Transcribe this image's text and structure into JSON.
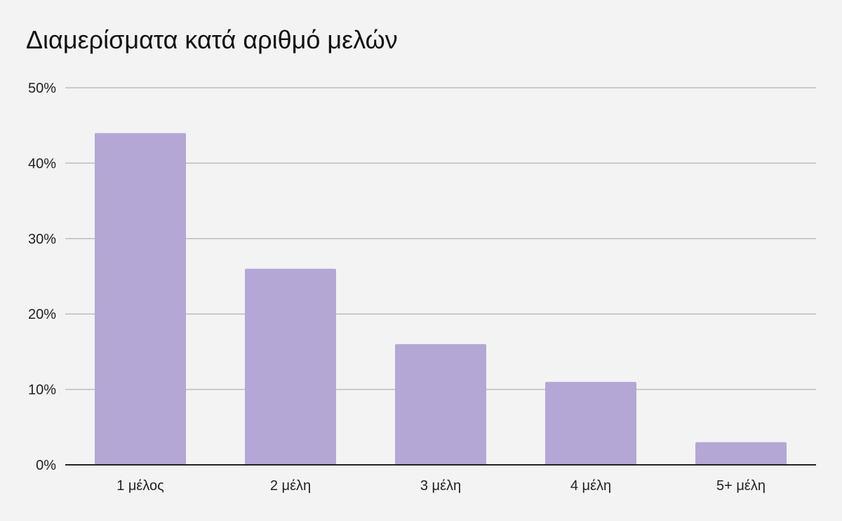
{
  "chart_data": {
    "type": "bar",
    "title": "Διαμερίσματα κατά αριθμό μελών",
    "categories": [
      "1 μέλος",
      "2 μέλη",
      "3 μέλη",
      "4 μέλη",
      "5+ μέλη"
    ],
    "values": [
      44,
      26,
      16,
      11,
      3
    ],
    "unit": "%",
    "ylim": [
      0,
      50
    ],
    "yticks": [
      0,
      10,
      20,
      30,
      40,
      50
    ],
    "ytick_labels": [
      "0%",
      "10%",
      "20%",
      "30%",
      "40%",
      "50%"
    ],
    "xlabel": "",
    "ylabel": "",
    "grid": true,
    "legend": "none",
    "colors": {
      "bar": "#b4a7d6",
      "grid": "#bdbdbd",
      "axis": "#222222",
      "background": "#f3f3f3"
    }
  }
}
